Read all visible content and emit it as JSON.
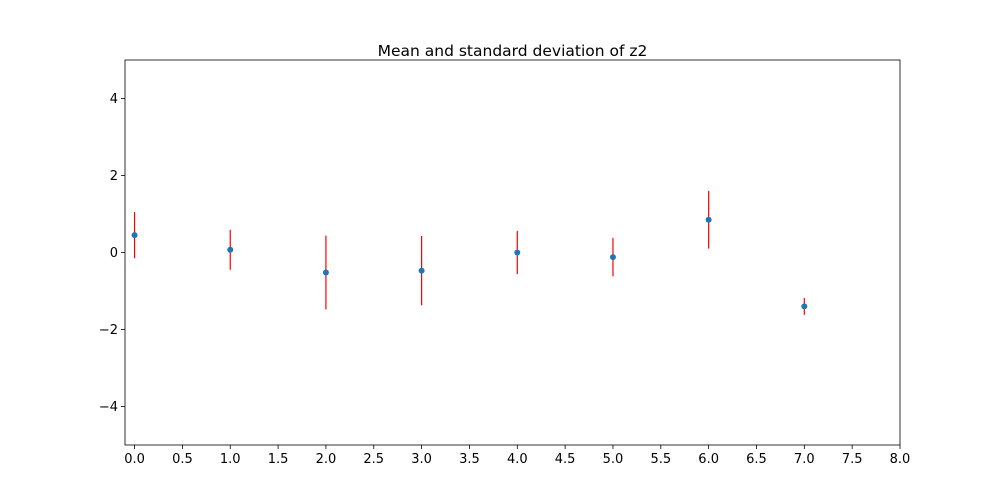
{
  "chart_data": {
    "type": "scatter",
    "title": "Mean and standard deviation of z2",
    "xlabel": "",
    "ylabel": "",
    "xlim": [
      -0.1,
      8.0
    ],
    "ylim": [
      -5,
      5
    ],
    "x_ticks": [
      0.0,
      0.5,
      1.0,
      1.5,
      2.0,
      2.5,
      3.0,
      3.5,
      4.0,
      4.5,
      5.0,
      5.5,
      6.0,
      6.5,
      7.0,
      7.5,
      8.0
    ],
    "x_tick_labels": [
      "0.0",
      "0.5",
      "1.0",
      "1.5",
      "2.0",
      "2.5",
      "3.0",
      "3.5",
      "4.0",
      "4.5",
      "5.0",
      "5.5",
      "6.0",
      "6.5",
      "7.0",
      "7.5",
      "8.0"
    ],
    "y_ticks": [
      -4,
      -2,
      0,
      2,
      4
    ],
    "y_tick_labels": [
      "−4",
      "−2",
      "0",
      "2",
      "4"
    ],
    "grid": false,
    "point_color": "#1f77b4",
    "errorbar_color": "#ff0000",
    "points": [
      {
        "x": 0,
        "mean": 0.45,
        "std": 0.6
      },
      {
        "x": 1,
        "mean": 0.07,
        "std": 0.52
      },
      {
        "x": 2,
        "mean": -0.52,
        "std": 0.96
      },
      {
        "x": 3,
        "mean": -0.47,
        "std": 0.9
      },
      {
        "x": 4,
        "mean": 0.0,
        "std": 0.56
      },
      {
        "x": 5,
        "mean": -0.12,
        "std": 0.5
      },
      {
        "x": 6,
        "mean": 0.85,
        "std": 0.75
      },
      {
        "x": 7,
        "mean": -1.4,
        "std": 0.22
      }
    ]
  }
}
